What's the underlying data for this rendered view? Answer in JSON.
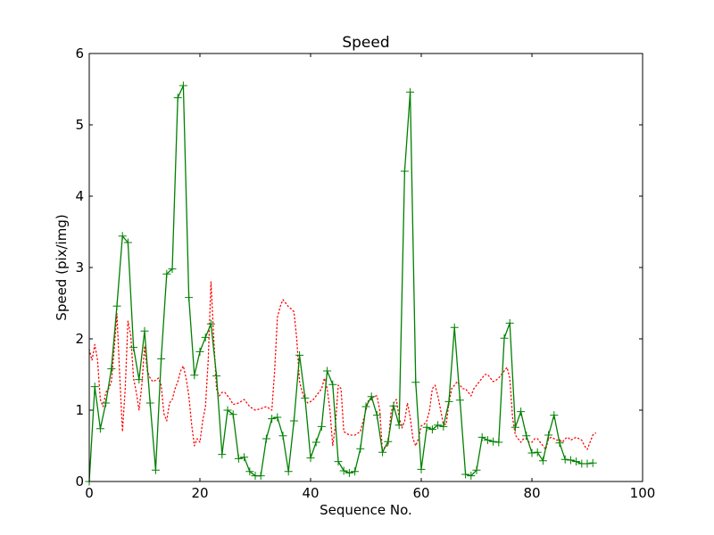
{
  "chart_data": {
    "type": "line",
    "title": "Speed",
    "xlabel": "Sequence No.",
    "ylabel": "Speed (pix/img)",
    "xlim": [
      0,
      100
    ],
    "ylim": [
      0,
      6
    ],
    "xticks": [
      0,
      20,
      40,
      60,
      80,
      100
    ],
    "yticks": [
      0,
      1,
      2,
      3,
      4,
      5,
      6
    ],
    "grid": false,
    "legend": "none",
    "series": [
      {
        "color": "#008000",
        "style": "solid",
        "marker": "plus",
        "x": [
          0,
          1,
          2,
          3,
          4,
          5,
          6,
          7,
          8,
          9,
          10,
          11,
          12,
          13,
          14,
          15,
          16,
          17,
          18,
          19,
          20,
          21,
          22,
          23,
          24,
          25,
          26,
          27,
          28,
          29,
          30,
          31,
          32,
          33,
          34,
          35,
          36,
          37,
          38,
          39,
          40,
          41,
          42,
          43,
          44,
          45,
          46,
          47,
          48,
          49,
          50,
          51,
          52,
          53,
          54,
          55,
          56,
          57,
          58,
          59,
          60,
          61,
          62,
          63,
          64,
          65,
          66,
          67,
          68,
          69,
          70,
          71,
          72,
          73,
          74,
          75,
          76,
          77,
          78,
          79,
          80,
          81,
          82,
          83,
          84,
          85,
          86,
          87,
          88,
          89,
          90,
          91
        ],
        "y": [
          0.0,
          1.33,
          0.74,
          1.1,
          1.58,
          2.46,
          3.44,
          3.35,
          1.88,
          1.43,
          2.11,
          1.1,
          0.16,
          1.72,
          2.91,
          2.98,
          5.38,
          5.55,
          2.58,
          1.49,
          1.82,
          2.02,
          2.21,
          1.48,
          0.38,
          1.0,
          0.94,
          0.32,
          0.34,
          0.14,
          0.08,
          0.08,
          0.6,
          0.88,
          0.9,
          0.64,
          0.14,
          0.85,
          1.77,
          1.17,
          0.33,
          0.55,
          0.77,
          1.55,
          1.36,
          0.28,
          0.15,
          0.12,
          0.14,
          0.46,
          1.05,
          1.19,
          0.93,
          0.41,
          0.56,
          1.06,
          0.79,
          4.35,
          5.46,
          1.39,
          0.17,
          0.76,
          0.73,
          0.79,
          0.77,
          1.12,
          2.16,
          1.14,
          0.1,
          0.08,
          0.16,
          0.62,
          0.58,
          0.56,
          0.55,
          2.01,
          2.22,
          0.76,
          0.98,
          0.64,
          0.4,
          0.41,
          0.29,
          0.65,
          0.93,
          0.54,
          0.31,
          0.3,
          0.28,
          0.25,
          0.25,
          0.26
        ]
      },
      {
        "color": "#ff0000",
        "style": "dotted",
        "marker": "none",
        "x": [
          0,
          0.5,
          1,
          1.5,
          2,
          2.5,
          3,
          3.5,
          4,
          4.5,
          5,
          5.5,
          6,
          6.5,
          7,
          7.5,
          8,
          8.5,
          9,
          9.5,
          10,
          10.5,
          11,
          11.5,
          12,
          12.5,
          13,
          13.5,
          14,
          14.5,
          15,
          15.5,
          16,
          16.5,
          17,
          17.5,
          18,
          18.5,
          19,
          19.5,
          20,
          20.5,
          21,
          21.5,
          22,
          22.5,
          23,
          23.5,
          24,
          24.5,
          25,
          25.5,
          26,
          27,
          28,
          29,
          30,
          31,
          32,
          33,
          33.5,
          34,
          34.5,
          35,
          35.5,
          36,
          36.5,
          37,
          37.5,
          38,
          38.5,
          39,
          39.5,
          40,
          40.5,
          41,
          41.5,
          42,
          42.5,
          43,
          43.5,
          44,
          44.5,
          45,
          45.5,
          46,
          47,
          48,
          49,
          50,
          50.5,
          51,
          51.5,
          52,
          52.5,
          53,
          53.5,
          54,
          54.5,
          55,
          55.5,
          56,
          56.5,
          57,
          57.5,
          58,
          58.5,
          59,
          59.5,
          60,
          60.5,
          61,
          61.5,
          62,
          62.5,
          63,
          63.5,
          64,
          64.5,
          65,
          65.5,
          66,
          66.5,
          67,
          67.5,
          68,
          68.5,
          69,
          69.5,
          70,
          70.5,
          71,
          71.5,
          72,
          72.5,
          73,
          73.5,
          74,
          74.5,
          75,
          75.5,
          76,
          76.5,
          77,
          77.5,
          78,
          78.5,
          79,
          79.5,
          80,
          80.5,
          81,
          81.5,
          82,
          82.5,
          83,
          83.5,
          84,
          84.5,
          85,
          85.5,
          86,
          86.5,
          87,
          87.5,
          88,
          88.5,
          89,
          89.5,
          90,
          90.5,
          91,
          91.5
        ],
        "y": [
          1.85,
          1.7,
          1.92,
          1.7,
          1.15,
          1.05,
          1.25,
          1.3,
          1.4,
          1.85,
          2.35,
          1.5,
          0.7,
          1.3,
          2.25,
          2.05,
          1.45,
          1.25,
          1.0,
          1.35,
          1.9,
          1.55,
          1.45,
          1.4,
          1.42,
          1.45,
          1.35,
          0.95,
          0.85,
          1.1,
          1.15,
          1.3,
          1.4,
          1.55,
          1.62,
          1.45,
          1.2,
          0.8,
          0.5,
          0.6,
          0.55,
          0.85,
          1.05,
          1.7,
          2.8,
          2.0,
          1.3,
          1.2,
          1.25,
          1.25,
          1.2,
          1.15,
          1.08,
          1.1,
          1.15,
          1.05,
          1.0,
          1.02,
          1.05,
          1.0,
          1.55,
          2.3,
          2.45,
          2.55,
          2.5,
          2.45,
          2.42,
          2.38,
          2.0,
          1.4,
          1.25,
          1.15,
          1.1,
          1.12,
          1.15,
          1.2,
          1.25,
          1.3,
          1.45,
          1.3,
          1.0,
          0.5,
          0.8,
          1.35,
          1.3,
          0.7,
          0.65,
          0.65,
          0.7,
          1.0,
          1.15,
          1.15,
          1.2,
          1.2,
          1.0,
          0.4,
          0.5,
          0.5,
          0.95,
          1.1,
          1.15,
          0.9,
          0.75,
          0.85,
          1.1,
          0.9,
          0.6,
          0.5,
          0.6,
          0.78,
          0.8,
          0.85,
          1.0,
          1.3,
          1.35,
          1.2,
          1.0,
          0.8,
          0.8,
          1.1,
          1.3,
          1.35,
          1.4,
          1.35,
          1.3,
          1.3,
          1.25,
          1.2,
          1.3,
          1.35,
          1.4,
          1.45,
          1.5,
          1.5,
          1.45,
          1.4,
          1.42,
          1.45,
          1.5,
          1.55,
          1.6,
          1.45,
          0.9,
          0.65,
          0.6,
          0.55,
          0.6,
          0.6,
          0.55,
          0.55,
          0.6,
          0.6,
          0.55,
          0.5,
          0.45,
          0.6,
          0.62,
          0.6,
          0.58,
          0.58,
          0.55,
          0.6,
          0.62,
          0.58,
          0.6,
          0.62,
          0.6,
          0.58,
          0.5,
          0.45,
          0.55,
          0.65,
          0.68
        ]
      }
    ]
  }
}
